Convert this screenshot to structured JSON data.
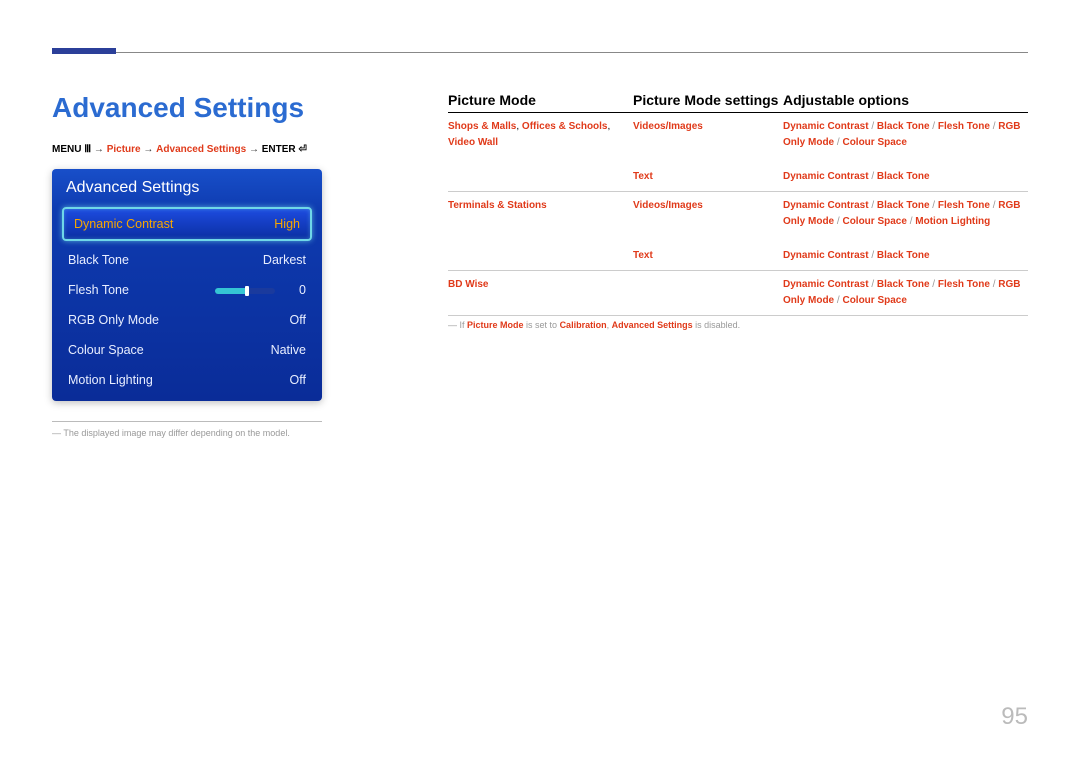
{
  "title": "Advanced Settings",
  "breadcrumb": {
    "menu": "MENU",
    "picture": "Picture",
    "advanced": "Advanced Settings",
    "enter": "ENTER",
    "arrow": "→"
  },
  "panel": {
    "header": "Advanced Settings",
    "items": [
      {
        "label": "Dynamic Contrast",
        "value": "High",
        "selected": true
      },
      {
        "label": "Black Tone",
        "value": "Darkest"
      },
      {
        "label": "Flesh Tone",
        "value": "0",
        "slider": {
          "pct": 50
        }
      },
      {
        "label": "RGB Only Mode",
        "value": "Off"
      },
      {
        "label": "Colour Space",
        "value": "Native"
      },
      {
        "label": "Motion Lighting",
        "value": "Off"
      }
    ]
  },
  "note_prefix": "―",
  "note": "The displayed image may differ depending on the model.",
  "table": {
    "headers": [
      "Picture Mode",
      "Picture Mode settings",
      "Adjustable options"
    ],
    "rows": [
      {
        "c1": [
          "Shops & Malls",
          ",",
          " Offices & Schools",
          ",",
          " Video Wall"
        ],
        "sub": [
          {
            "c2": "Videos/Images",
            "c3": [
              "Dynamic Contrast",
              "Black Tone",
              "Flesh Tone",
              "RGB Only Mode",
              "Colour Space"
            ]
          },
          {
            "c2": "Text",
            "c3": [
              "Dynamic Contrast",
              "Black Tone"
            ]
          }
        ]
      },
      {
        "c1": [
          "Terminals & Stations"
        ],
        "sub": [
          {
            "c2": "Videos/Images",
            "c3": [
              "Dynamic Contrast",
              "Black Tone",
              "Flesh Tone",
              "RGB Only Mode",
              "Colour Space",
              "Motion Lighting"
            ]
          },
          {
            "c2": "Text",
            "c3": [
              "Dynamic Contrast",
              "Black Tone"
            ]
          }
        ]
      },
      {
        "c1": [
          "BD Wise"
        ],
        "sub": [
          {
            "c2": "",
            "c3": [
              "Dynamic Contrast",
              "Black Tone",
              "Flesh Tone",
              "RGB Only Mode",
              "Colour Space"
            ]
          }
        ]
      }
    ]
  },
  "footnote": {
    "prefix": "―",
    "part1": "If ",
    "mode": "Picture Mode",
    "part2": " is set to ",
    "cal": "Calibration",
    "part3": ", ",
    "adv": "Advanced Settings",
    "part4": " is disabled."
  },
  "page_number": "95",
  "colors": {
    "accent_blue": "#2b6bd1",
    "title_bar": "#2b3f99",
    "red": "#e03a1a",
    "highlight": "#f7a600",
    "slider": "#35c5d4"
  }
}
